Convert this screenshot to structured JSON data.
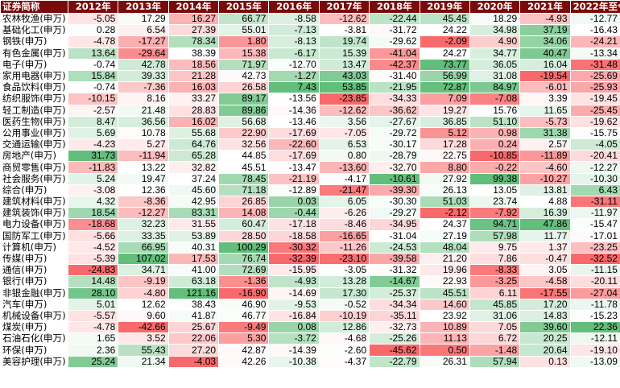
{
  "header": [
    "证券简称",
    "2012年",
    "2013年",
    "2014年",
    "2015年",
    "2016年",
    "2017年",
    "2018年",
    "2019年",
    "2020年",
    "2021年",
    "2022年至今"
  ],
  "rows": [
    [
      "农林牧渔(申万)",
      "-5.05",
      "17.29",
      "16.27",
      "66.77",
      "-8.58",
      "-12.62",
      "-22.44",
      "45.45",
      "18.29",
      "-4.93",
      "-12.77"
    ],
    [
      "基础化工(申万)",
      "0.28",
      "6.54",
      "27.39",
      "55.01",
      "-7.13",
      "-3.81",
      "-31.72",
      "24.22",
      "34.98",
      "37.19",
      "-16.43"
    ],
    [
      "钢铁(申万)",
      "-4.78",
      "-17.27",
      "78.34",
      "1.80",
      "-8.13",
      "19.74",
      "-29.62",
      "-2.09",
      "4.90",
      "34.06",
      "-24.21"
    ],
    [
      "有色金属(申万)",
      "13.64",
      "-29.64",
      "38.39",
      "15.38",
      "-6.17",
      "15.39",
      "-41.04",
      "24.27",
      "34.77",
      "40.47",
      "-13.34"
    ],
    [
      "电子(申万)",
      "-0.74",
      "42.78",
      "18.56",
      "71.97",
      "-12.70",
      "13.47",
      "-42.37",
      "73.77",
      "36.05",
      "16.04",
      "-31.48"
    ],
    [
      "家用电器(申万)",
      "15.84",
      "39.33",
      "21.28",
      "42.73",
      "-1.27",
      "43.03",
      "-31.40",
      "56.99",
      "31.08",
      "-19.54",
      "-25.69"
    ],
    [
      "食品饮料(申万)",
      "-0.74",
      "-7.36",
      "16.03",
      "26.58",
      "7.43",
      "53.85",
      "-21.95",
      "72.87",
      "84.97",
      "-6.01",
      "-25.93"
    ],
    [
      "纺织服饰(申万)",
      "-10.15",
      "8.16",
      "33.27",
      "89.17",
      "-13.56",
      "-23.85",
      "-34.33",
      "7.09",
      "-7.08",
      "3.39",
      "-19.45"
    ],
    [
      "轻工制造(申万)",
      "-2.57",
      "21.48",
      "28.83",
      "89.86",
      "-14.36",
      "-12.62",
      "-36.62",
      "19.27",
      "15.76",
      "11.65",
      "-25.45"
    ],
    [
      "医药生物(申万)",
      "8.47",
      "36.56",
      "16.02",
      "56.68",
      "-13.46",
      "3.56",
      "-27.67",
      "36.85",
      "51.10",
      "-5.73",
      "-19.62"
    ],
    [
      "公用事业(申万)",
      "5.69",
      "10.78",
      "55.68",
      "22.90",
      "-17.69",
      "-7.05",
      "-29.72",
      "5.12",
      "0.98",
      "31.38",
      "-15.75"
    ],
    [
      "交通运输(申万)",
      "-4.23",
      "5.27",
      "64.76",
      "32.56",
      "-22.60",
      "6.53",
      "-30.17",
      "17.28",
      "0.24",
      "2.57",
      "-4.05"
    ],
    [
      "房地产(申万)",
      "31.73",
      "-11.94",
      "65.28",
      "44.85",
      "-17.69",
      "0.80",
      "-28.79",
      "22.75",
      "-10.85",
      "-11.89",
      "-20.41"
    ],
    [
      "商贸零售(申万)",
      "-11.83",
      "13.22",
      "32.82",
      "45.51",
      "-13.47",
      "-13.60",
      "-32.70",
      "8.80",
      "-0.22",
      "-4.60",
      "-12.27"
    ],
    [
      "社会服务(申万)",
      "5.24",
      "19.47",
      "37.24",
      "78.45",
      "-21.19",
      "-4.17",
      "-10.61",
      "27.92",
      "99.38",
      "-10.27",
      "-10.30"
    ],
    [
      "综合(申万)",
      "-3.08",
      "12.36",
      "45.60",
      "71.18",
      "-12.89",
      "-21.47",
      "-39.30",
      "26.13",
      "13.05",
      "13.81",
      "6.43"
    ],
    [
      "建筑材料(申万)",
      "4.32",
      "-8.36",
      "42.95",
      "26.85",
      "0.03",
      "6.05",
      "-30.30",
      "51.03",
      "23.74",
      "4.88",
      "-31.11"
    ],
    [
      "建筑装饰(申万)",
      "18.54",
      "-12.27",
      "83.31",
      "14.08",
      "-0.44",
      "-6.26",
      "-29.27",
      "-2.12",
      "-7.92",
      "16.39",
      "-11.97"
    ],
    [
      "电力设备(申万)",
      "-18.68",
      "32.23",
      "31.55",
      "60.47",
      "-17.18",
      "-8.46",
      "-34.95",
      "24.37",
      "94.71",
      "47.86",
      "-15.47"
    ],
    [
      "国防军工(申万)",
      "-5.66",
      "33.35",
      "53.89",
      "28.50",
      "-18.58",
      "-16.65",
      "-31.04",
      "27.19",
      "57.98",
      "11.77",
      "-17.01"
    ],
    [
      "计算机(申万)",
      "-4.52",
      "66.95",
      "40.31",
      "100.29",
      "-30.32",
      "-11.26",
      "-24.53",
      "48.04",
      "9.75",
      "1.37",
      "-23.25"
    ],
    [
      "传媒(申万)",
      "-5.39",
      "107.02",
      "17.53",
      "76.74",
      "-32.39",
      "-23.10",
      "-39.58",
      "21.20",
      "7.86",
      "-0.47",
      "-32.52"
    ],
    [
      "通信(申万)",
      "-24.83",
      "34.71",
      "41.00",
      "72.69",
      "-15.95",
      "-3.05",
      "-31.32",
      "19.96",
      "-8.33",
      "3.05",
      "-11.15"
    ],
    [
      "银行(申万)",
      "14.48",
      "-9.19",
      "63.18",
      "-1.36",
      "-4.93",
      "13.28",
      "-14.67",
      "22.93",
      "-3.25",
      "-4.58",
      "-20.11"
    ],
    [
      "非银金融(申万)",
      "28.10",
      "-4.80",
      "121.16",
      "-16.90",
      "-14.69",
      "17.30",
      "-25.37",
      "45.51",
      "6.11",
      "-17.55",
      "-27.04"
    ],
    [
      "汽车(申万)",
      "5.01",
      "12.62",
      "38.43",
      "46.90",
      "-9.53",
      "-0.52",
      "-34.34",
      "14.60",
      "45.85",
      "17.20",
      "-11.78"
    ],
    [
      "机械设备(申万)",
      "-5.57",
      "9.60",
      "41.87",
      "46.77",
      "-16.84",
      "-10.19",
      "-35.11",
      "23.92",
      "31.06",
      "14.83",
      "-15.23"
    ],
    [
      "煤炭(申万)",
      "-4.78",
      "-42.66",
      "25.67",
      "-9.49",
      "0.08",
      "12.86",
      "-32.73",
      "10.89",
      "7.05",
      "39.60",
      "22.36"
    ],
    [
      "石油石化(申万)",
      "1.65",
      "3.52",
      "22.06",
      "5.30",
      "-3.72",
      "-4.68",
      "-25.26",
      "11.13",
      "6.72",
      "20.25",
      "-12.11"
    ],
    [
      "环保(申万)",
      "2.36",
      "55.43",
      "27.20",
      "42.87",
      "-14.39",
      "-2.60",
      "-45.62",
      "0.50",
      "-1.48",
      "20.64",
      "-19.10"
    ],
    [
      "美容护理(申万)",
      "25.24",
      "21.34",
      "-4.03",
      "42.26",
      "-10.38",
      "-4.37",
      "-22.79",
      "26.31",
      "57.94",
      "0.13",
      "-13.09"
    ]
  ],
  "colors": {
    "header_bg": "#7a0b0b",
    "header_text": "#ffffff",
    "positive": "#63be7b",
    "negative": "#f8696b",
    "neutral": "#ffffff"
  }
}
